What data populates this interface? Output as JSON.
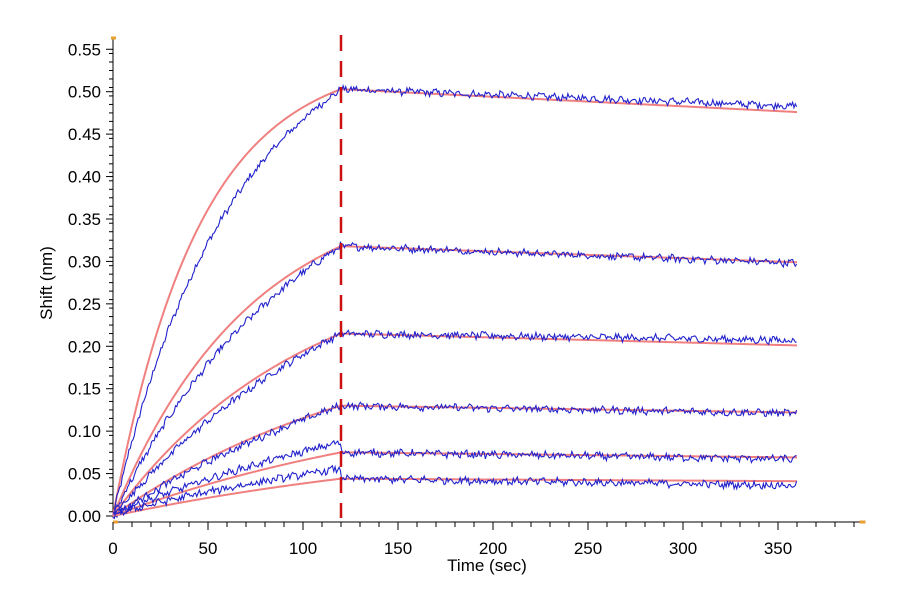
{
  "chart_data": {
    "type": "line",
    "title": "",
    "xlabel": "Time (sec)",
    "ylabel": "Shift (nm)",
    "xlim": [
      0,
      395
    ],
    "ylim": [
      0,
      0.56
    ],
    "x_ticks": [
      0,
      50,
      100,
      150,
      200,
      250,
      300,
      350
    ],
    "y_ticks": [
      0.0,
      0.05,
      0.1,
      0.15,
      0.2,
      0.25,
      0.3,
      0.35,
      0.4,
      0.45,
      0.5,
      0.55
    ],
    "x_tick_labels": [
      "0",
      "50",
      "100",
      "150",
      "200",
      "250",
      "300",
      "350"
    ],
    "y_tick_labels": [
      "0.00",
      "0.05",
      "0.10",
      "0.15",
      "0.20",
      "0.25",
      "0.30",
      "0.35",
      "0.40",
      "0.45",
      "0.50",
      "0.55"
    ],
    "grid": false,
    "association_end_time": 120,
    "end_time": 360,
    "colors": {
      "measured": "#2222cc",
      "fit": "#f08080",
      "marker_line": "#cc1111",
      "axis_tick_accent": "#e8a030"
    },
    "curves": [
      {
        "peak": 0.503,
        "end": 0.476,
        "measured_end": 0.483
      },
      {
        "peak": 0.318,
        "end": 0.299,
        "measured_end": 0.298
      },
      {
        "peak": 0.215,
        "end": 0.201,
        "measured_end": 0.207
      },
      {
        "peak": 0.13,
        "end": 0.122,
        "measured_end": 0.121
      },
      {
        "peak": 0.075,
        "end": 0.069,
        "measured_end": 0.067
      },
      {
        "peak": 0.044,
        "end": 0.041,
        "measured_end": 0.036
      }
    ]
  }
}
